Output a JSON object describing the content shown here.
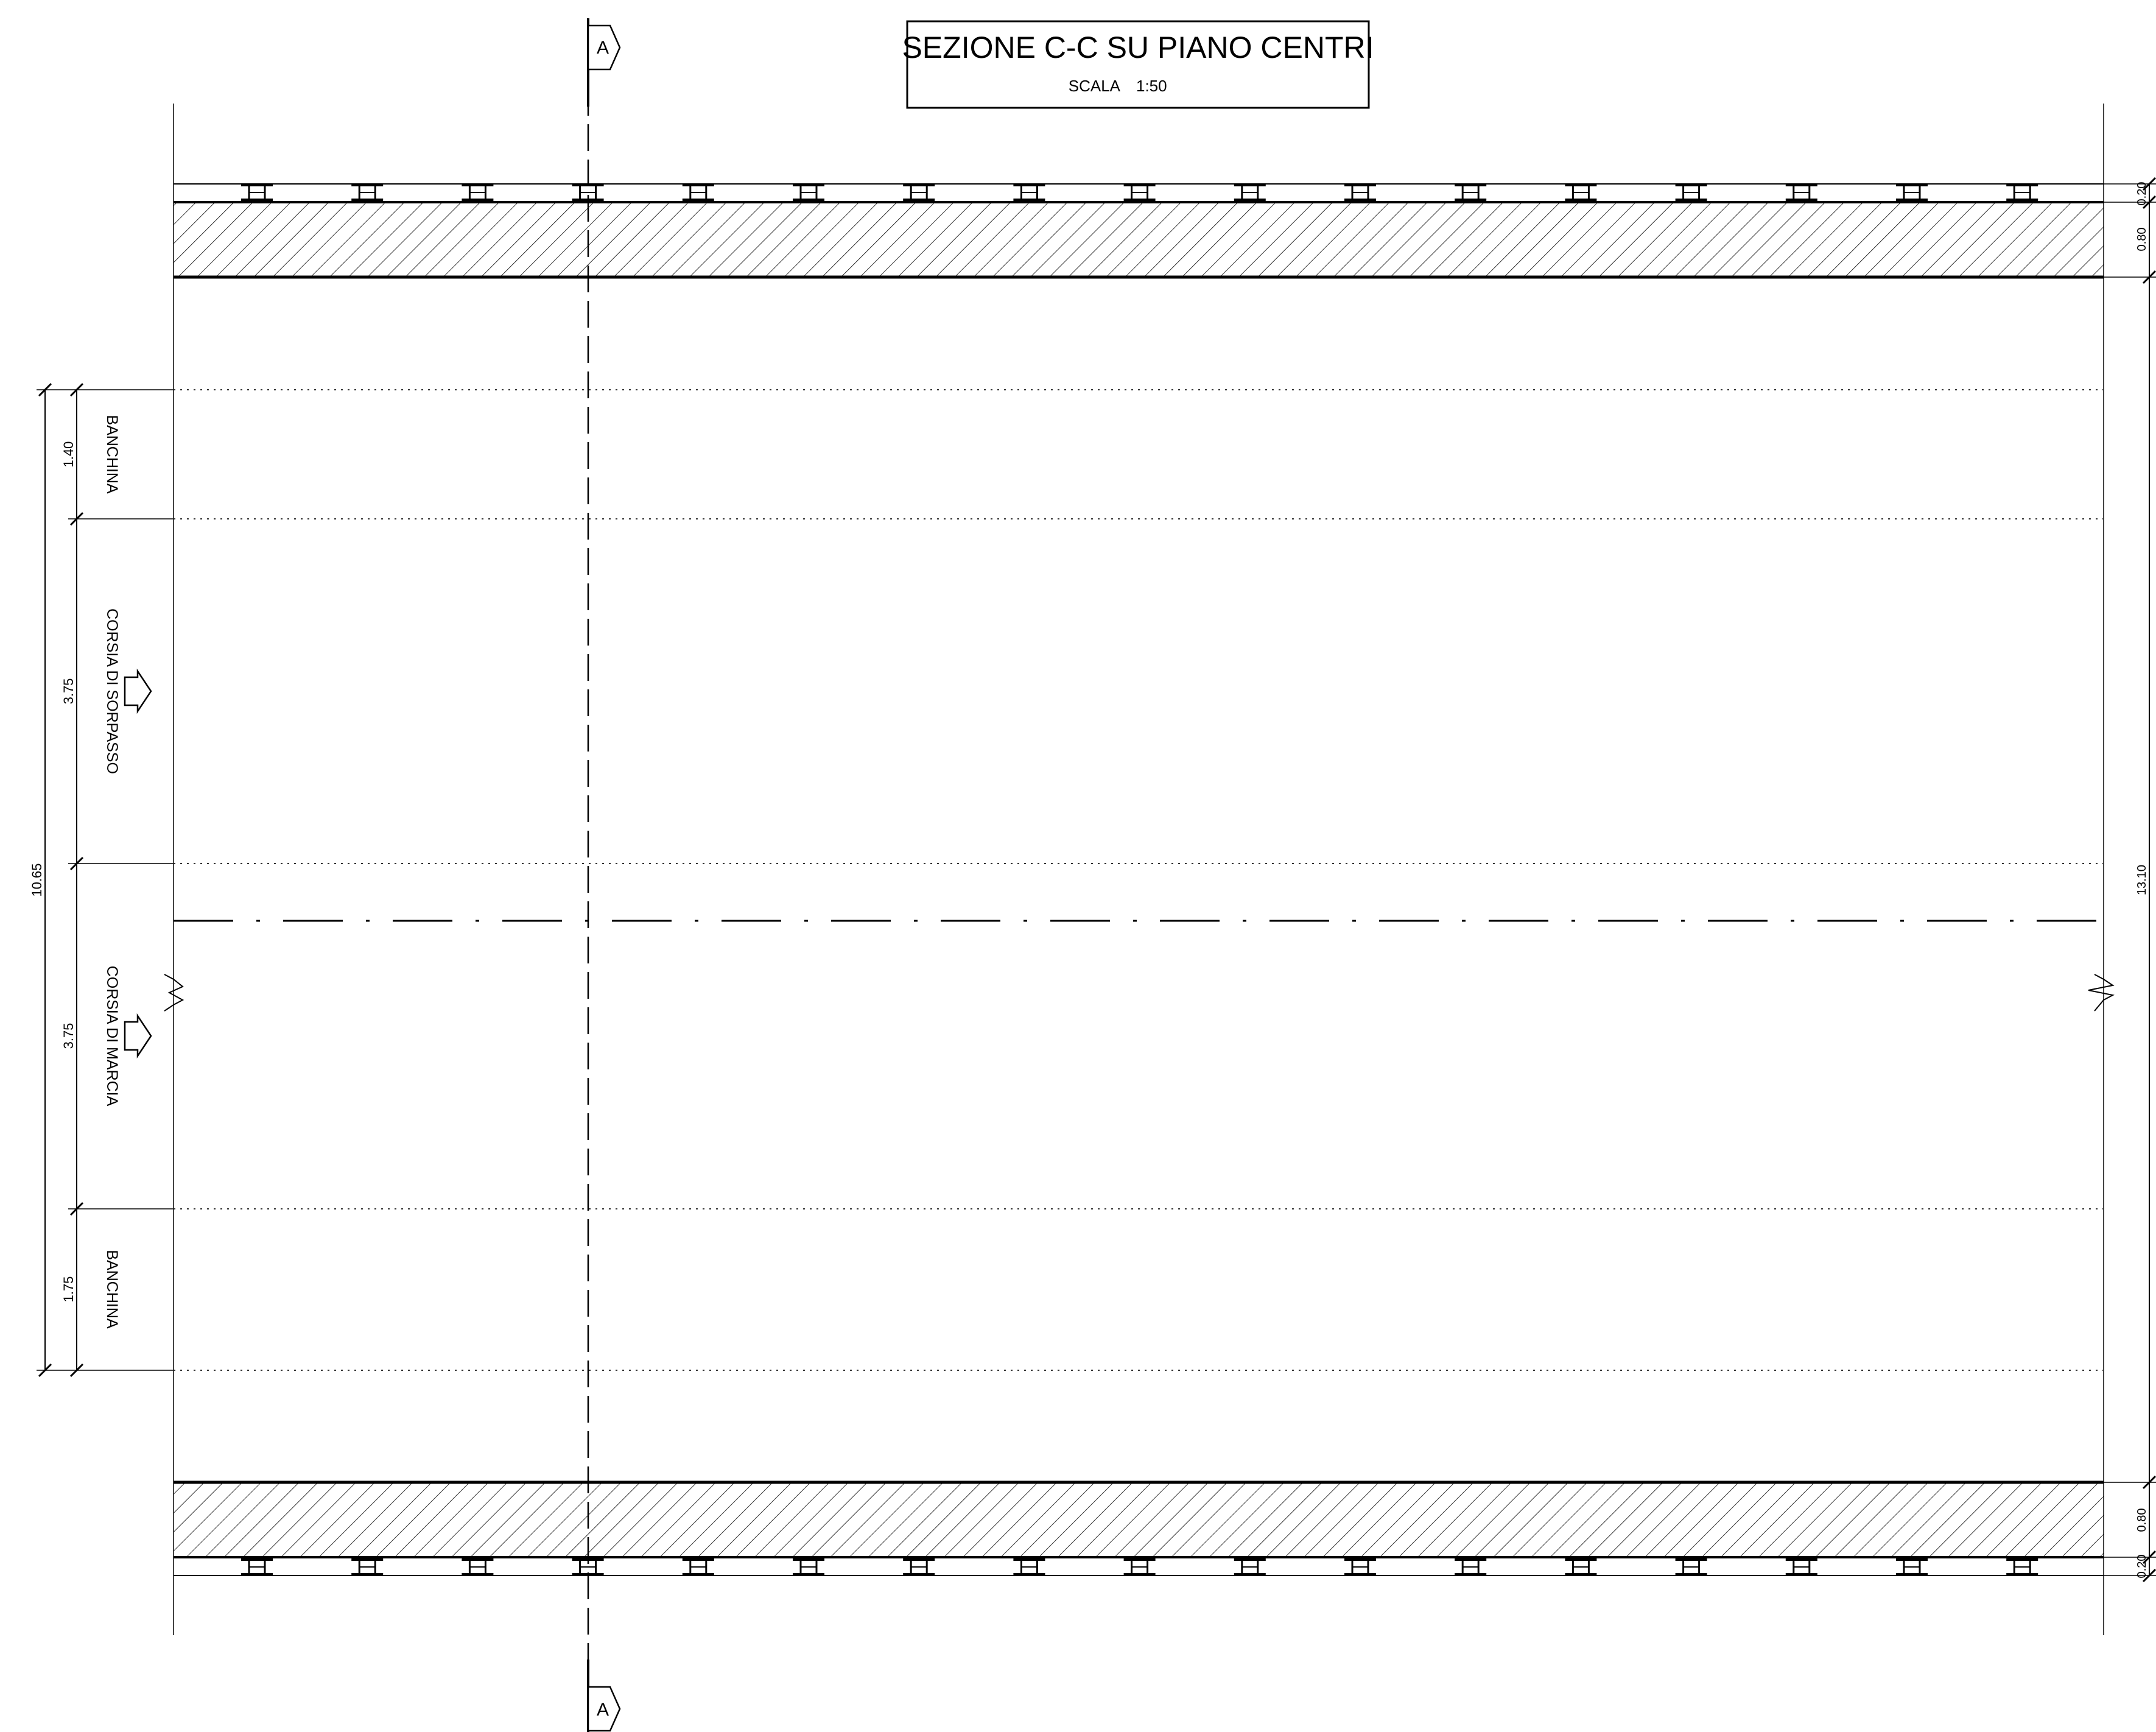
{
  "title_block": {
    "title": "SEZIONE C-C SU PIANO CENTRI",
    "scale_label": "SCALA",
    "scale_value": "1:50"
  },
  "section_markers": {
    "top_label": "A",
    "bottom_label": "A"
  },
  "lanes": {
    "banchina_top": "BANCHINA",
    "corsia_sorpasso": "CORSIA DI SORPASSO",
    "corsia_marcia": "CORSIA DI MARCIA",
    "banchina_bottom": "BANCHINA"
  },
  "dimensions_left": {
    "total": "10.65",
    "banchina_top": "1.40",
    "corsia_sorpasso": "3.75",
    "corsia_marcia": "3.75",
    "banchina_bottom": "1.75"
  },
  "dimensions_right": {
    "top_barrier": "0.20",
    "top_curb": "0.80",
    "carriageway": "13.10",
    "bottom_curb": "0.80",
    "bottom_barrier": "0.20"
  },
  "colors": {
    "line": "#000000",
    "thin_line": "#444444",
    "background": "#ffffff"
  }
}
